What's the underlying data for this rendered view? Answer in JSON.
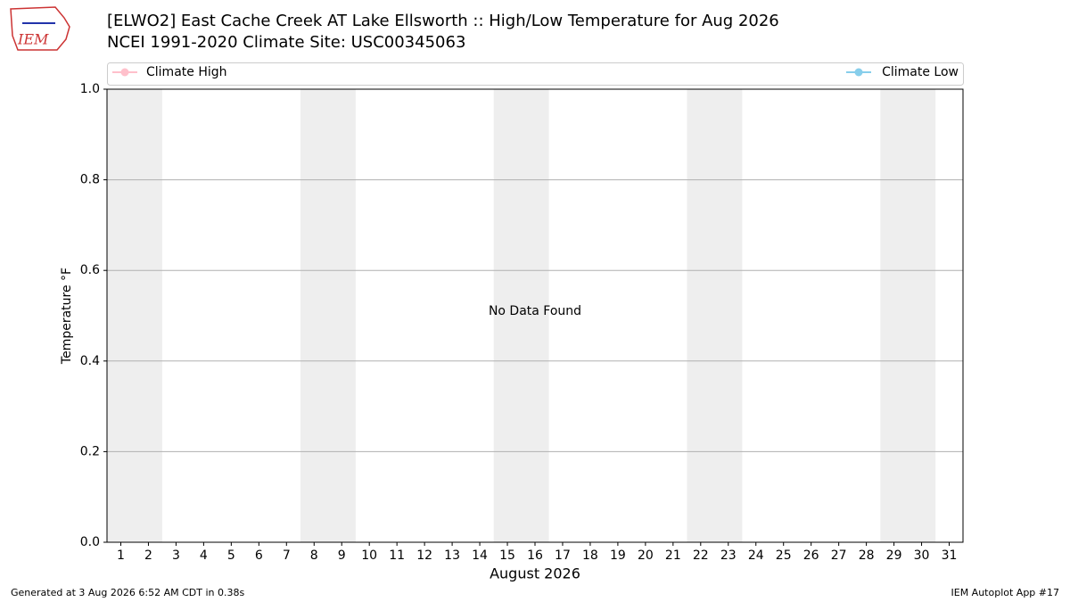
{
  "chart_data": {
    "type": "line",
    "title": "[ELWO2] East Cache Creek  AT Lake Ellsworth :: High/Low Temperature for Aug 2026",
    "subtitle": "NCEI 1991-2020 Climate Site: USC00345063",
    "x_label": "August 2026",
    "y_label": "Temperature °F",
    "annotation": "No Data Found",
    "x": [],
    "series": [
      {
        "name": "Climate High",
        "color": "#ffc0cb",
        "values": []
      },
      {
        "name": "Climate Low",
        "color": "#87ceeb",
        "values": []
      }
    ],
    "xlim": [
      0.5,
      31.5
    ],
    "xticks": [
      1,
      2,
      3,
      4,
      5,
      6,
      7,
      8,
      9,
      10,
      11,
      12,
      13,
      14,
      15,
      16,
      17,
      18,
      19,
      20,
      21,
      22,
      23,
      24,
      25,
      26,
      27,
      28,
      29,
      30,
      31
    ],
    "ylim": [
      0,
      1
    ],
    "yticks": [
      {
        "value": 0,
        "label": "0.0"
      },
      {
        "value": 0.2,
        "label": "0.2"
      },
      {
        "value": 0.4,
        "label": "0.4"
      },
      {
        "value": 0.6,
        "label": "0.6"
      },
      {
        "value": 0.8,
        "label": "0.8"
      },
      {
        "value": 1,
        "label": "1.0"
      }
    ],
    "grid": "y"
  },
  "logo_text": "IEM",
  "footer_left": "Generated at 3 Aug 2026 6:52 AM CDT in 0.38s",
  "footer_right": "IEM Autoplot App #17"
}
